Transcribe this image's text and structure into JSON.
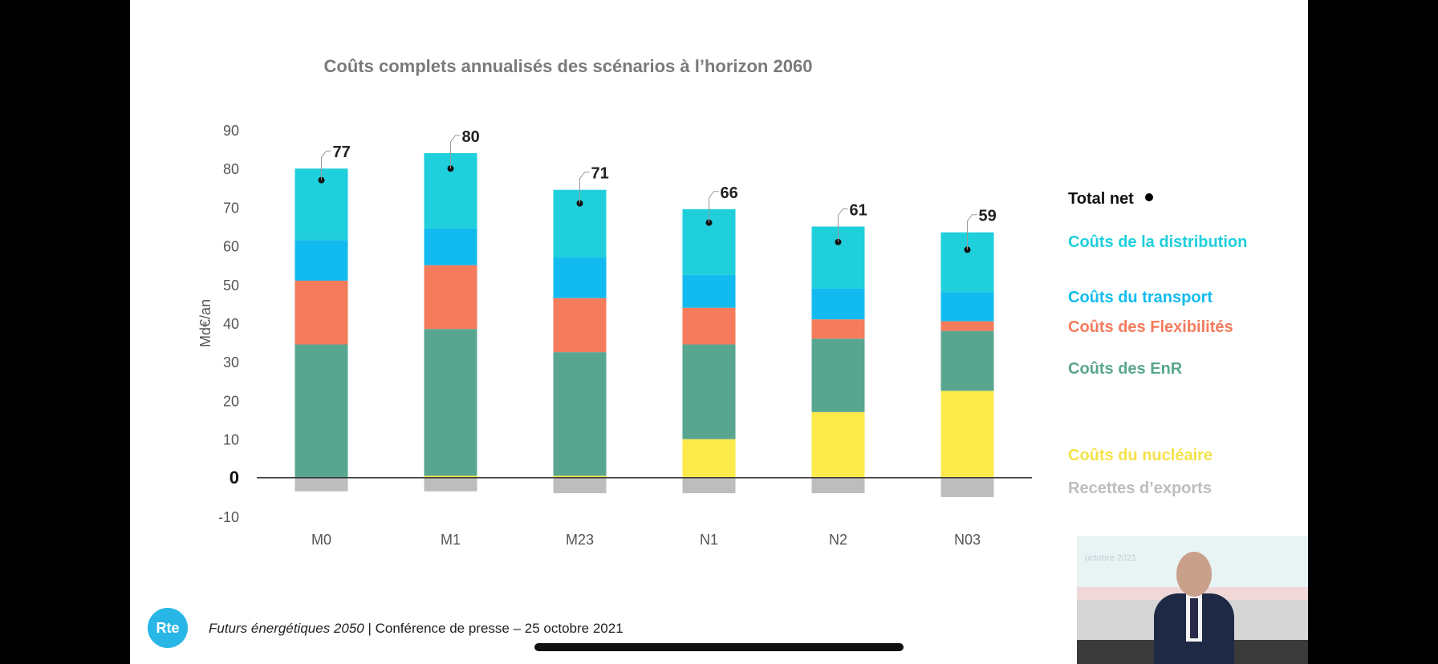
{
  "chart_data": {
    "type": "bar",
    "stacked": true,
    "title": "Coûts complets annualisés des scénarios à l’horizon 2060",
    "ylabel": "Md€/an",
    "ylim": [
      -10,
      90
    ],
    "yticks": [
      -10,
      0,
      10,
      20,
      30,
      40,
      50,
      60,
      70,
      80,
      90
    ],
    "zero_label": "0",
    "categories": [
      "M0",
      "M1",
      "M23",
      "N1",
      "N2",
      "N03"
    ],
    "series": [
      {
        "name": "Recettes d’exports",
        "color": "#bdbdbd",
        "values": [
          -3.5,
          -3.5,
          -4,
          -4,
          -4,
          -5
        ]
      },
      {
        "name": "Coûts du nucléaire",
        "color": "#fcea4a",
        "values": [
          0,
          0.5,
          0.5,
          10,
          17,
          22.5
        ]
      },
      {
        "name": "Coûts des EnR",
        "color": "#59a690",
        "values": [
          34.5,
          38,
          32,
          24.5,
          19,
          15.5
        ]
      },
      {
        "name": "Coûts des Flexibilités",
        "color": "#f47b5c",
        "values": [
          16.5,
          16.5,
          14,
          9.5,
          5,
          2.5
        ]
      },
      {
        "name": "Coûts du transport",
        "color": "#12bbef",
        "values": [
          10.5,
          9.5,
          10.5,
          8.5,
          8,
          7.5
        ]
      },
      {
        "name": "Coûts de la distribution",
        "color": "#1fcfdc",
        "values": [
          18.5,
          19.5,
          17.5,
          17,
          16,
          15.5
        ]
      }
    ],
    "total_net": {
      "name": "Total net",
      "values": [
        77,
        80,
        71,
        66,
        61,
        59
      ],
      "labels": [
        "77",
        "80",
        "71",
        "66",
        "61",
        "59"
      ]
    },
    "legend_position": "right"
  },
  "legend": {
    "items": [
      {
        "label": "Total net",
        "color": "#000000"
      },
      {
        "label": "Coûts de la distribution",
        "color": "#1fcfdc"
      },
      {
        "label": "Coûts du transport",
        "color": "#12bbef"
      },
      {
        "label": "Coûts des Flexibilités",
        "color": "#f47b5c"
      },
      {
        "label": "Coûts des EnR",
        "color": "#59a690"
      },
      {
        "label": "Coûts du nucléaire",
        "color": "#fcea4a"
      },
      {
        "label": "Recettes d’exports",
        "color": "#bdbdbd"
      }
    ]
  },
  "footer": {
    "logo": "Rte",
    "italic": "Futurs énergétiques 2050",
    "rest": " | Conférence de presse – 25 octobre 2021"
  },
  "video": {
    "caption": "octobre 2021",
    "icon": "presenter-video"
  }
}
